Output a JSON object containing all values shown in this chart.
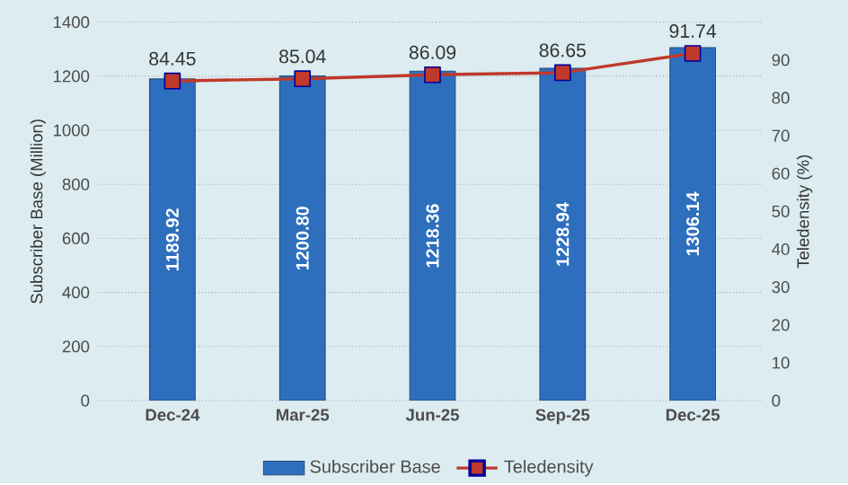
{
  "chart_data": {
    "type": "bar",
    "categories": [
      "Dec-24",
      "Mar-25",
      "Jun-25",
      "Sep-25",
      "Dec-25"
    ],
    "series": [
      {
        "name": "Subscriber Base",
        "color": "#2e6fbd",
        "values": [
          1189.92,
          1200.8,
          1218.36,
          1228.94,
          1306.14
        ],
        "value_labels": [
          "1189.92",
          "1200.80",
          "1218.36",
          "1228.94",
          "1306.14"
        ]
      },
      {
        "name": "Teledensity",
        "type": "line",
        "axis": "y2",
        "color": "#c0392b",
        "marker": "square",
        "values": [
          84.45,
          85.04,
          86.09,
          86.65,
          91.74
        ],
        "value_labels": [
          "84.45",
          "85.04",
          "86.09",
          "86.65",
          "91.74"
        ]
      }
    ],
    "ylabel": "Subscriber Base (Million)",
    "y2label": "Teledensity (%)",
    "ylim": [
      0,
      1400
    ],
    "yticks": [
      0,
      200,
      400,
      600,
      800,
      1000,
      1200,
      1400
    ],
    "y2lim": [
      0,
      100
    ],
    "y2ticks": [
      0,
      10,
      20,
      30,
      40,
      50,
      60,
      70,
      80,
      90
    ],
    "grid": "y",
    "legend": "bottom"
  }
}
